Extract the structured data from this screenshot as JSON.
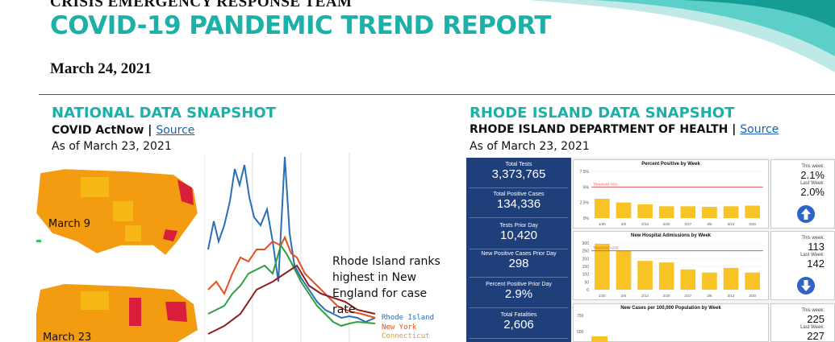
{
  "header": {
    "org": "CRISIS EMERGENCY RESPONSE TEAM",
    "title": "COVID-19 PANDEMIC TREND REPORT",
    "date": "March 24, 2021"
  },
  "national": {
    "heading": "NATIONAL DATA SNAPSHOT",
    "source_name": "COVID ActNow",
    "source_sep": " | ",
    "source_link": "Source",
    "as_of": "As of March 23, 2021",
    "map1_label": "March 9",
    "map2_label": "March 23",
    "callout": "Rhode Island  ranks highest in New England for case rate",
    "legend": [
      "Rhode Island",
      "New York",
      "Connecticut"
    ]
  },
  "rhode_island": {
    "heading": "RHODE ISLAND DATA SNAPSHOT",
    "source_name": "RHODE ISLAND DEPARTMENT OF HEALTH",
    "source_sep": " | ",
    "source_link": "Source",
    "as_of": "As of March 23, 2021",
    "kpis": [
      {
        "label": "Total Tests",
        "value": "3,373,765"
      },
      {
        "label": "Total Positive Cases",
        "value": "134,336"
      },
      {
        "label": "Tests Prior Day",
        "value": "10,420"
      },
      {
        "label": "New Positive Cases Prior Day",
        "value": "298"
      },
      {
        "label": "Percent Positive Prior Day",
        "value": "2.9%"
      },
      {
        "label": "Total Fatalities",
        "value": "2,606"
      }
    ],
    "panels": [
      {
        "title": "Percent Positive by Week",
        "this_week_label": "This week:",
        "this_week": "2.1%",
        "last_week_label": "Last Week:",
        "last_week": "2.0%",
        "trend": "up"
      },
      {
        "title": "New Hospital Admissions by Week",
        "this_week_label": "This week:",
        "this_week": "113",
        "last_week_label": "Last Week:",
        "last_week": "142",
        "trend": "down"
      },
      {
        "title": "New Cases per 100,000 Population by Week",
        "this_week_label": "This week:",
        "this_week": "225",
        "last_week_label": "Last Week:",
        "last_week": "227",
        "trend": ""
      }
    ],
    "week_labels": [
      "1/30",
      "2/6",
      "2/13",
      "2/20",
      "2/27",
      "3/6",
      "3/13",
      "3/20"
    ]
  },
  "colors": {
    "teal": "#1bb0a8",
    "navy": "#1f3f7a",
    "bar": "#f7c325",
    "threshold": "#e05a5a"
  },
  "chart_data": [
    {
      "type": "bar",
      "title": "Percent Positive by Week",
      "categories": [
        "1/30",
        "2/6",
        "2/13",
        "2/20",
        "2/27",
        "3/6",
        "3/13",
        "3/20"
      ],
      "values": [
        3.1,
        2.5,
        2.2,
        1.9,
        1.9,
        1.8,
        1.9,
        2.0
      ],
      "ylim": [
        0,
        7.5
      ],
      "yticks": [
        "7.5%",
        "5%",
        "2.5%",
        "0%"
      ],
      "threshold": 5,
      "threshold_label": "Threshold <5%"
    },
    {
      "type": "bar",
      "title": "New Hospital Admissions by Week",
      "categories": [
        "1/30",
        "2/6",
        "2/13",
        "2/20",
        "2/27",
        "3/6",
        "3/13",
        "3/20"
      ],
      "values": [
        295,
        250,
        185,
        175,
        130,
        110,
        140,
        110
      ],
      "ylim": [
        0,
        300
      ],
      "yticks": [
        "300",
        "250",
        "200",
        "150",
        "100",
        "50",
        "0"
      ],
      "threshold": 250,
      "threshold_label": "Threshold <250"
    }
  ]
}
